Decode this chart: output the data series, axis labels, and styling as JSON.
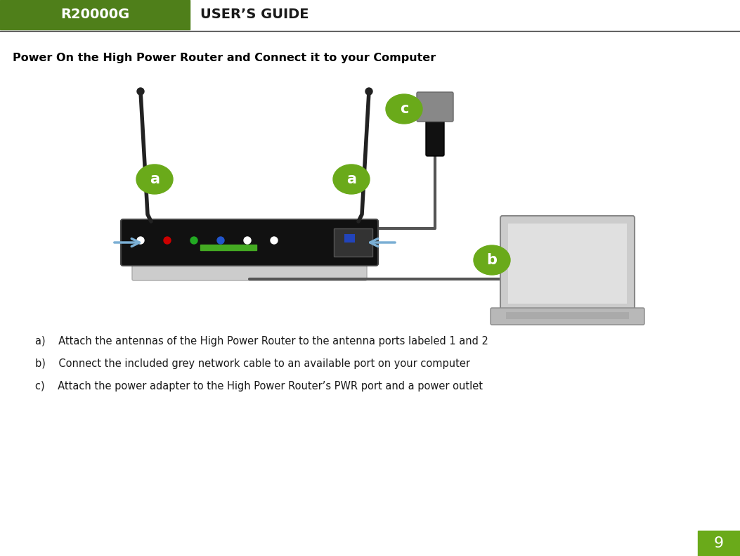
{
  "bg_color": "#ffffff",
  "header_box_color": "#4f7f1a",
  "header_r20000g_text": "R20000G",
  "header_r20000g_color": "#ffffff",
  "header_users_guide_text": "USER’S GUIDE",
  "header_users_guide_color": "#1a1a1a",
  "header_line_color": "#333333",
  "section_title": "Power On the High Power Router and Connect it to your Computer",
  "section_title_color": "#000000",
  "section_title_fontsize": 11.5,
  "bullet_a": "a)    Attach the antennas of the High Power Router to the antenna ports labeled 1 and 2",
  "bullet_b": "b)    Connect the included grey network cable to an available port on your computer",
  "bullet_c": "c)    Attach the power adapter to the High Power Router’s PWR port and a power outlet",
  "bullet_fontsize": 10.5,
  "bullet_color": "#1a1a1a",
  "page_number": "9",
  "page_number_bg": "#6aaa1a",
  "page_number_color": "#ffffff",
  "green_color": "#6aaa1a",
  "router_body_color": "#111111",
  "router_base_color": "#cccccc",
  "antenna_color": "#222222",
  "arrow_color": "#7bafd4",
  "cable_color": "#555555",
  "adapter_body_color": "#888888",
  "adapter_plug_color": "#111111",
  "laptop_screen_color": "#cccccc",
  "laptop_body_color": "#b8b8b8"
}
